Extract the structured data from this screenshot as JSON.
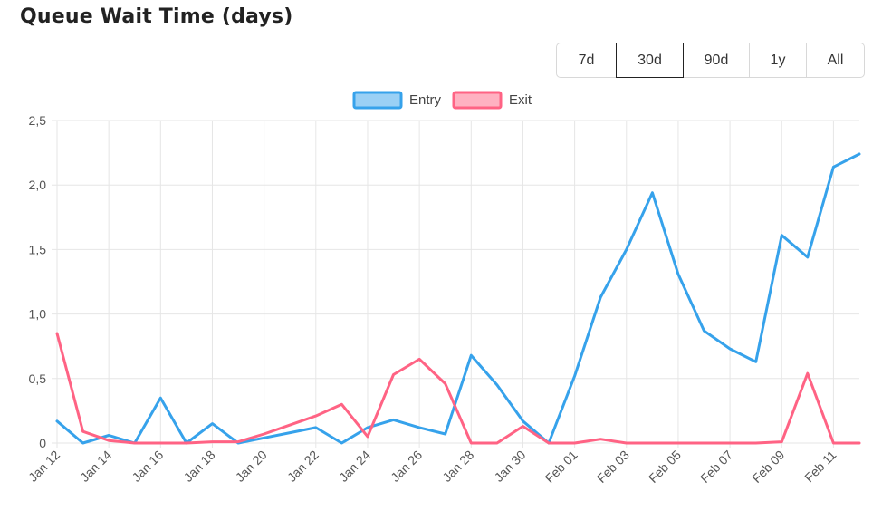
{
  "title": "Queue Wait Time (days)",
  "range_buttons": [
    {
      "label": "7d",
      "active": false
    },
    {
      "label": "30d",
      "active": true
    },
    {
      "label": "90d",
      "active": false
    },
    {
      "label": "1y",
      "active": false
    },
    {
      "label": "All",
      "active": false
    }
  ],
  "chart_data": {
    "type": "line",
    "title": "Queue Wait Time (days)",
    "ylim": [
      0,
      2.5
    ],
    "y_ticks": [
      "0",
      "0,5",
      "1,0",
      "1,5",
      "2,0",
      "2,5"
    ],
    "y_tick_values": [
      0,
      0.5,
      1.0,
      1.5,
      2.0,
      2.5
    ],
    "x_tick_labels": [
      "Jan 12",
      "Jan 14",
      "Jan 16",
      "Jan 18",
      "Jan 20",
      "Jan 22",
      "Jan 24",
      "Jan 26",
      "Jan 28",
      "Jan 30",
      "Feb 01",
      "Feb 03",
      "Feb 05",
      "Feb 07",
      "Feb 09",
      "Feb 11"
    ],
    "x": [
      "Jan 12",
      "Jan 13",
      "Jan 14",
      "Jan 15",
      "Jan 16",
      "Jan 17",
      "Jan 18",
      "Jan 19",
      "Jan 20",
      "Jan 21",
      "Jan 22",
      "Jan 23",
      "Jan 24",
      "Jan 25",
      "Jan 26",
      "Jan 27",
      "Jan 28",
      "Jan 29",
      "Jan 30",
      "Jan 31",
      "Feb 01",
      "Feb 02",
      "Feb 03",
      "Feb 04",
      "Feb 05",
      "Feb 06",
      "Feb 07",
      "Feb 08",
      "Feb 09",
      "Feb 10",
      "Feb 11",
      "Feb 12"
    ],
    "grid": true,
    "legend_position": "top",
    "series": [
      {
        "name": "Entry",
        "color": "#36a2eb",
        "fill": "#9ad0f5",
        "values": [
          0.17,
          0.0,
          0.06,
          0.0,
          0.35,
          0.0,
          0.15,
          0.0,
          0.04,
          0.08,
          0.12,
          0.0,
          0.12,
          0.18,
          0.12,
          0.07,
          0.68,
          0.45,
          0.17,
          0.0,
          0.52,
          1.13,
          1.5,
          1.94,
          1.31,
          0.87,
          0.73,
          0.63,
          1.61,
          1.44,
          2.14,
          2.24
        ]
      },
      {
        "name": "Exit",
        "color": "#ff6384",
        "fill": "#ffb1c1",
        "values": [
          0.85,
          0.09,
          0.02,
          0.0,
          0.0,
          0.0,
          0.01,
          0.01,
          0.07,
          0.14,
          0.21,
          0.3,
          0.05,
          0.53,
          0.65,
          0.46,
          0.0,
          0.0,
          0.13,
          0.0,
          0.0,
          0.03,
          0.0,
          0.0,
          0.0,
          0.0,
          0.0,
          0.0,
          0.01,
          0.54,
          0.0,
          0.0
        ]
      }
    ]
  }
}
